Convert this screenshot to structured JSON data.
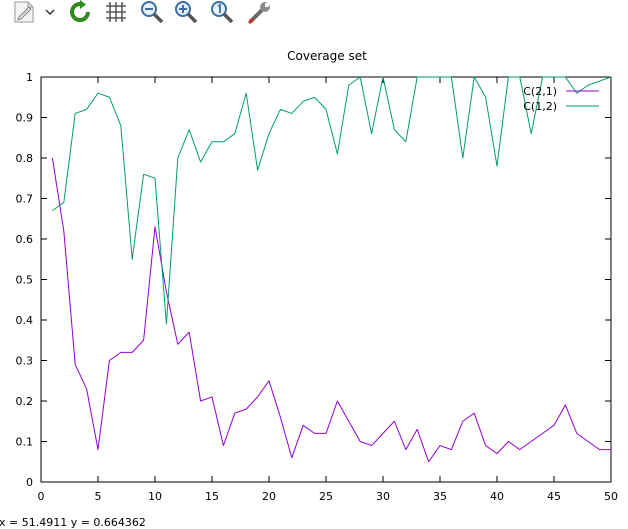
{
  "toolbar": {
    "items": [
      {
        "name": "export-icon"
      },
      {
        "name": "export-dropdown-chevron-icon"
      },
      {
        "name": "replot-icon"
      },
      {
        "name": "grid-icon"
      },
      {
        "name": "zoom-out-icon"
      },
      {
        "name": "zoom-in-icon"
      },
      {
        "name": "zoom-original-icon"
      },
      {
        "name": "settings-wrench-icon"
      }
    ]
  },
  "status": {
    "coords": "x = 51.4911 y = 0.664362"
  },
  "chart_data": {
    "type": "line",
    "title": "Coverage set",
    "xlabel": "",
    "ylabel": "",
    "xlim": [
      0,
      50
    ],
    "ylim": [
      0,
      1
    ],
    "xticks": [
      "0",
      "5",
      "10",
      "15",
      "20",
      "25",
      "30",
      "35",
      "40",
      "45",
      "50"
    ],
    "yticks": [
      "0",
      "0.1",
      "0.2",
      "0.3",
      "0.4",
      "0.5",
      "0.6",
      "0.7",
      "0.8",
      "0.9",
      "1"
    ],
    "grid": false,
    "legend_position": "top-right",
    "x": [
      1,
      2,
      3,
      4,
      5,
      6,
      7,
      8,
      9,
      10,
      11,
      12,
      13,
      14,
      15,
      16,
      17,
      18,
      19,
      20,
      21,
      22,
      23,
      24,
      25,
      26,
      27,
      28,
      29,
      30,
      31,
      32,
      33,
      34,
      35,
      36,
      37,
      38,
      39,
      40,
      41,
      42,
      43,
      44,
      45,
      46,
      47,
      48,
      49,
      50
    ],
    "series": [
      {
        "name": "C(2,1)",
        "color": "#9400d3",
        "values": [
          0.8,
          0.62,
          0.29,
          0.23,
          0.08,
          0.3,
          0.32,
          0.32,
          0.35,
          0.63,
          0.47,
          0.34,
          0.37,
          0.2,
          0.21,
          0.09,
          0.17,
          0.18,
          0.21,
          0.25,
          0.16,
          0.06,
          0.14,
          0.12,
          0.12,
          0.2,
          0.15,
          0.1,
          0.09,
          0.12,
          0.15,
          0.08,
          0.13,
          0.05,
          0.09,
          0.08,
          0.15,
          0.17,
          0.09,
          0.07,
          0.1,
          0.08,
          0.1,
          0.12,
          0.14,
          0.19,
          0.12,
          0.1,
          0.08,
          0.08
        ]
      },
      {
        "name": "C(1,2)",
        "color": "#009e73",
        "values": [
          0.67,
          0.69,
          0.91,
          0.92,
          0.96,
          0.95,
          0.88,
          0.55,
          0.76,
          0.75,
          0.39,
          0.8,
          0.87,
          0.79,
          0.84,
          0.84,
          0.86,
          0.96,
          0.77,
          0.86,
          0.92,
          0.91,
          0.94,
          0.95,
          0.92,
          0.81,
          0.98,
          1.0,
          0.86,
          1.0,
          0.87,
          0.84,
          1.0,
          1.0,
          1.0,
          1.0,
          0.8,
          1.0,
          0.95,
          0.78,
          1.0,
          1.0,
          0.86,
          1.0,
          1.0,
          1.0,
          0.96,
          0.98,
          0.99,
          1.0
        ]
      }
    ]
  }
}
